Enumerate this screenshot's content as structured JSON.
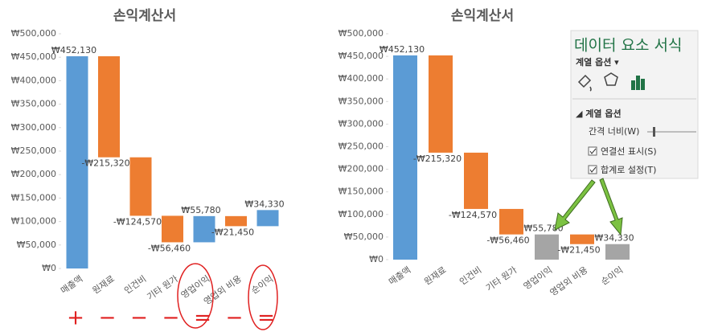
{
  "chart_data": [
    {
      "type": "waterfall",
      "title": "손익계산서",
      "categories": [
        "매출액",
        "원재료",
        "인건비",
        "기타 원가",
        "영업이익",
        "영업외 비용",
        "순이익"
      ],
      "values": [
        452130,
        -215320,
        -124570,
        -56460,
        55780,
        -21450,
        34330
      ],
      "value_labels": [
        "₩452,130",
        "-₩215,320",
        "-₩124,570",
        "-₩56,460",
        "₩55,780",
        "-₩21,450",
        "₩34,330"
      ],
      "is_total": [
        false,
        false,
        false,
        false,
        false,
        false,
        false
      ],
      "colors": {
        "increase": "#5b9bd5",
        "decrease": "#ed7d31",
        "total": "#a5a5a5"
      },
      "ylim": [
        0,
        500000
      ],
      "yticks": [
        {
          "value": 0,
          "label": "₩0"
        },
        {
          "value": 50000,
          "label": "₩50,000"
        },
        {
          "value": 100000,
          "label": "₩100,000"
        },
        {
          "value": 150000,
          "label": "₩150,000"
        },
        {
          "value": 200000,
          "label": "₩200,000"
        },
        {
          "value": 250000,
          "label": "₩250,000"
        },
        {
          "value": 300000,
          "label": "₩300,000"
        },
        {
          "value": 350000,
          "label": "₩350,000"
        },
        {
          "value": 400000,
          "label": "₩400,000"
        },
        {
          "value": 450000,
          "label": "₩450,000"
        },
        {
          "value": 500000,
          "label": "₩500,000"
        }
      ],
      "annotations": [
        "+",
        "−",
        "−",
        "−",
        "=",
        "−",
        "="
      ]
    },
    {
      "type": "waterfall",
      "title": "손익계산서",
      "categories": [
        "매출액",
        "원재료",
        "인건비",
        "기타 원가",
        "영업이익",
        "영업외 비용",
        "순이익"
      ],
      "values": [
        452130,
        -215320,
        -124570,
        -56460,
        55780,
        -21450,
        34330
      ],
      "value_labels": [
        "₩452,130",
        "-₩215,320",
        "-₩124,570",
        "-₩56,460",
        "₩55,780",
        "-₩21,450",
        "₩34,330"
      ],
      "is_total": [
        false,
        false,
        false,
        false,
        true,
        false,
        true
      ],
      "colors": {
        "increase": "#5b9bd5",
        "decrease": "#ed7d31",
        "total": "#a5a5a5"
      },
      "ylim": [
        0,
        500000
      ],
      "yticks": [
        {
          "value": 0,
          "label": "₩0"
        },
        {
          "value": 50000,
          "label": "₩50,000"
        },
        {
          "value": 100000,
          "label": "₩100,000"
        },
        {
          "value": 150000,
          "label": "₩150,000"
        },
        {
          "value": 200000,
          "label": "₩200,000"
        },
        {
          "value": 250000,
          "label": "₩250,000"
        },
        {
          "value": 300000,
          "label": "₩300,000"
        },
        {
          "value": 350000,
          "label": "₩350,000"
        },
        {
          "value": 400000,
          "label": "₩400,000"
        },
        {
          "value": 450000,
          "label": "₩450,000"
        },
        {
          "value": 500000,
          "label": "₩500,000"
        }
      ]
    }
  ],
  "panel": {
    "title": "데이터 요소 서식",
    "tab": "계열 옵션 ▾",
    "section": "◢ 계열 옵션",
    "gap_width": "간격 너비(W)",
    "options": [
      "연결선 표시(S)",
      "합계로 설정(T)"
    ]
  }
}
